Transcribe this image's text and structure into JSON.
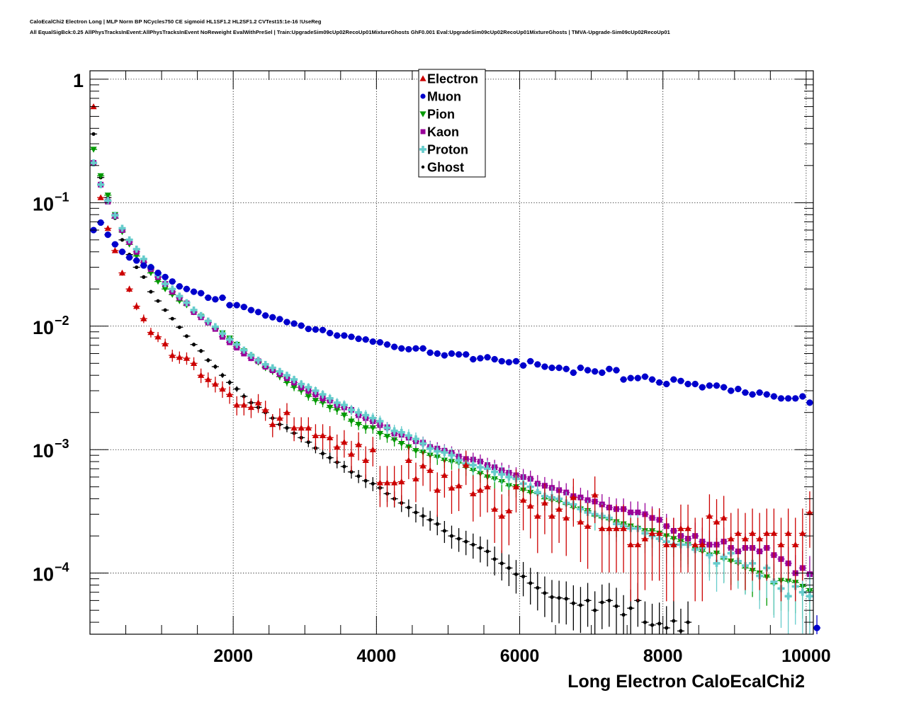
{
  "header": {
    "line1": "CaloEcalChi2 Electron Long | MLP Norm BP NCycles750 CE sigmoid HL1SF1.2 HL2SF1.2 CVTest15:1e-16 !UseReg",
    "line2": "All EqualSigBck:0.25 AllPhysTracksInEvent:AllPhysTracksInEvent NoReweight EvalWithPreSel | Train:UpgradeSim09cUp02RecoUp01MixtureGhosts GhF0.001 Eval:UpgradeSim09cUp02RecoUp01MixtureGhosts | TMVA-Upgrade-Sim09cUp02RecoUp01"
  },
  "chart_data": {
    "type": "scatter",
    "title": "",
    "xlabel": "Long Electron CaloEcalChi2",
    "ylabel": "",
    "xlim": [
      0,
      10100
    ],
    "ylim": [
      3.2e-05,
      1.17
    ],
    "yscale": "log",
    "grid": true,
    "legend_position": "top-center",
    "x_ticks": [
      2000,
      4000,
      6000,
      8000,
      10000
    ],
    "x_tick_labels": [
      "2000",
      "4000",
      "6000",
      "8000",
      "10000"
    ],
    "y_ticks": [
      1,
      0.1,
      0.01,
      0.001,
      0.0001
    ],
    "y_tick_labels": [
      {
        "base": "1",
        "exp": ""
      },
      {
        "base": "10",
        "exp": "−1"
      },
      {
        "base": "10",
        "exp": "−2"
      },
      {
        "base": "10",
        "exp": "−3"
      },
      {
        "base": "10",
        "exp": "−4"
      }
    ],
    "bin_width": 100,
    "bin_start": 0,
    "series": [
      {
        "name": "Electron",
        "color": "#cc0000",
        "marker": "triangle-up",
        "err_scale": 0.0085,
        "values": [
          0.6,
          0.11,
          0.062,
          0.041,
          0.027,
          0.02,
          0.0145,
          0.0115,
          0.0089,
          0.0082,
          0.0072,
          0.0058,
          0.0056,
          0.0055,
          0.005,
          0.004,
          0.0037,
          0.0034,
          0.0031,
          0.0028,
          0.0023,
          0.0023,
          0.0022,
          0.0024,
          0.0021,
          0.0016,
          0.0018,
          0.002,
          0.0015,
          0.0015,
          0.0015,
          0.0013,
          0.0013,
          0.00125,
          0.00105,
          0.00115,
          0.00092,
          0.0011,
          0.00082,
          0.001,
          0.00054,
          0.00054,
          0.00054,
          0.00055,
          0.00082,
          0.00058,
          0.00074,
          0.00068,
          0.00047,
          0.00062,
          0.00049,
          0.00051,
          0.00075,
          0.00044,
          0.00047,
          0.0005,
          0.00033,
          0.00029,
          0.00032,
          0.0005,
          0.00039,
          0.00035,
          0.00029,
          0.00037,
          0.00029,
          0.00033,
          0.00028,
          0.00041,
          0.00026,
          0.00024,
          0.00043,
          0.00023,
          0.00023,
          0.00023,
          0.00023,
          0.00017,
          0.00017,
          0.00019,
          0.00021,
          0.00021,
          0.00017,
          0.00017,
          0.00023,
          0.00023,
          0.00017,
          0.00017,
          0.00029,
          0.00026,
          0.00028,
          0.00019,
          0.00021,
          0.00019,
          0.00021,
          0.00019,
          0.00021,
          0.00021,
          0.00017,
          0.00021,
          0.00017,
          0.00021,
          0.00031
        ]
      },
      {
        "name": "Muon",
        "color": "#0000cc",
        "marker": "circle",
        "err_scale": 0.0016,
        "values": [
          0.06,
          0.069,
          0.055,
          0.046,
          0.04,
          0.036,
          0.034,
          0.031,
          0.03,
          0.027,
          0.025,
          0.023,
          0.021,
          0.02,
          0.019,
          0.0185,
          0.017,
          0.0165,
          0.017,
          0.0148,
          0.0148,
          0.0143,
          0.0135,
          0.013,
          0.0122,
          0.0118,
          0.0114,
          0.0108,
          0.0105,
          0.0101,
          0.0095,
          0.0094,
          0.0093,
          0.0088,
          0.0084,
          0.0084,
          0.0082,
          0.0079,
          0.0078,
          0.0075,
          0.0074,
          0.0071,
          0.0068,
          0.0066,
          0.0065,
          0.0066,
          0.0066,
          0.0061,
          0.006,
          0.0058,
          0.006,
          0.0059,
          0.0059,
          0.0054,
          0.0055,
          0.0056,
          0.0054,
          0.0052,
          0.0051,
          0.0052,
          0.0048,
          0.0052,
          0.0049,
          0.0047,
          0.0046,
          0.0046,
          0.0045,
          0.0042,
          0.0046,
          0.0044,
          0.0043,
          0.0042,
          0.0045,
          0.0044,
          0.0037,
          0.0038,
          0.0038,
          0.0039,
          0.0037,
          0.0035,
          0.0034,
          0.0037,
          0.0036,
          0.0034,
          0.0034,
          0.0032,
          0.0033,
          0.0033,
          0.0032,
          0.003,
          0.0031,
          0.0029,
          0.0028,
          0.0029,
          0.0028,
          0.0027,
          0.0026,
          0.0026,
          0.0026,
          0.0027,
          0.0024,
          3.6e-05
        ]
      },
      {
        "name": "Pion",
        "color": "#009900",
        "marker": "triangle-down",
        "err_scale": 0.004,
        "values": [
          0.27,
          0.165,
          0.115,
          0.08,
          0.058,
          0.046,
          0.037,
          0.031,
          0.027,
          0.023,
          0.02,
          0.018,
          0.016,
          0.0148,
          0.013,
          0.012,
          0.0107,
          0.0096,
          0.0088,
          0.008,
          0.0071,
          0.0063,
          0.0057,
          0.0051,
          0.0046,
          0.0043,
          0.0039,
          0.0035,
          0.0032,
          0.003,
          0.0027,
          0.0025,
          0.0024,
          0.0022,
          0.0021,
          0.0019,
          0.0017,
          0.0016,
          0.0015,
          0.0015,
          0.00135,
          0.00128,
          0.0012,
          0.00112,
          0.00105,
          0.00098,
          0.00095,
          0.0009,
          0.00087,
          0.00082,
          0.0008,
          0.00078,
          0.00072,
          0.00068,
          0.00064,
          0.0006,
          0.00058,
          0.00055,
          0.00051,
          0.0005,
          0.00047,
          0.00045,
          0.00044,
          0.0004,
          0.00039,
          0.00038,
          0.00036,
          0.00034,
          0.00033,
          0.00032,
          0.00029,
          0.00028,
          0.00027,
          0.00026,
          0.00025,
          0.00024,
          0.00023,
          0.00022,
          0.00022,
          0.00021,
          0.0002,
          0.00019,
          0.00018,
          0.00017,
          0.000155,
          0.00015,
          0.00014,
          0.000145,
          0.00013,
          0.000125,
          0.00012,
          0.00011,
          0.000105,
          0.0001,
          9.3e-05,
          8.2e-05,
          8.7e-05,
          8.6e-05,
          8.4e-05,
          7.8e-05,
          7.2e-05
        ]
      },
      {
        "name": "Kaon",
        "color": "#990099",
        "marker": "square",
        "err_scale": 0.004,
        "values": [
          0.21,
          0.14,
          0.102,
          0.078,
          0.06,
          0.048,
          0.04,
          0.033,
          0.029,
          0.025,
          0.022,
          0.019,
          0.017,
          0.0153,
          0.013,
          0.0118,
          0.0107,
          0.0095,
          0.0082,
          0.0074,
          0.0067,
          0.006,
          0.0055,
          0.0052,
          0.0047,
          0.0044,
          0.0041,
          0.0038,
          0.0035,
          0.0032,
          0.003,
          0.0028,
          0.0026,
          0.0025,
          0.0023,
          0.0022,
          0.0021,
          0.0019,
          0.0018,
          0.0017,
          0.00158,
          0.00152,
          0.00135,
          0.00132,
          0.00125,
          0.00117,
          0.00114,
          0.00105,
          0.00102,
          0.00098,
          0.00094,
          0.00088,
          0.00084,
          0.00083,
          0.0008,
          0.00075,
          0.00072,
          0.00068,
          0.00065,
          0.00062,
          0.0006,
          0.00058,
          0.00053,
          0.00051,
          0.00049,
          0.00047,
          0.00045,
          0.00042,
          0.00041,
          0.00039,
          0.00038,
          0.00036,
          0.00034,
          0.00033,
          0.00033,
          0.00031,
          0.00031,
          0.0003,
          0.00028,
          0.00027,
          0.00024,
          0.00022,
          0.0002,
          0.00019,
          0.0002,
          0.00018,
          0.00017,
          0.00017,
          0.00018,
          0.00016,
          0.00015,
          0.00016,
          0.00016,
          0.00015,
          0.00016,
          0.00014,
          0.00013,
          0.00012,
          0.0001,
          0.00011,
          9.8e-05
        ]
      },
      {
        "name": "Proton",
        "color": "#66cccc",
        "marker": "cross",
        "err_scale": 0.0045,
        "values": [
          0.21,
          0.14,
          0.104,
          0.079,
          0.062,
          0.05,
          0.042,
          0.035,
          0.03,
          0.026,
          0.022,
          0.02,
          0.0175,
          0.0155,
          0.0135,
          0.0122,
          0.011,
          0.0099,
          0.0087,
          0.0078,
          0.0071,
          0.0064,
          0.0058,
          0.0053,
          0.0049,
          0.0046,
          0.0043,
          0.004,
          0.0037,
          0.0034,
          0.0032,
          0.003,
          0.0028,
          0.0026,
          0.0024,
          0.0023,
          0.0021,
          0.002,
          0.0019,
          0.0018,
          0.0017,
          0.0015,
          0.00142,
          0.00138,
          0.0013,
          0.00122,
          0.00112,
          0.00102,
          0.00097,
          0.00095,
          0.0009,
          0.00082,
          0.00077,
          0.00075,
          0.00072,
          0.0007,
          0.00066,
          0.00063,
          0.0006,
          0.00058,
          0.00053,
          0.0005,
          0.00045,
          0.00042,
          0.00041,
          0.0004,
          0.00037,
          0.00036,
          0.00033,
          0.00031,
          0.0003,
          0.00029,
          0.00028,
          0.00025,
          0.00024,
          0.00023,
          0.00023,
          0.00021,
          0.0002,
          0.00019,
          0.00018,
          0.00017,
          0.00017,
          0.00017,
          0.000155,
          0.00016,
          0.00014,
          0.00012,
          0.000135,
          0.000145,
          0.000125,
          0.000115,
          0.00012,
          9.5e-05,
          0.00011,
          8.5e-05,
          7.5e-05,
          6.5e-05,
          7.8e-05,
          7e-05,
          6.5e-05
        ]
      },
      {
        "name": "Ghost",
        "color": "#000000",
        "marker": "small-circle",
        "err_scale": 0.003,
        "values": [
          0.36,
          0.16,
          0.11,
          0.075,
          0.05,
          0.038,
          0.03,
          0.025,
          0.019,
          0.016,
          0.0135,
          0.0115,
          0.0098,
          0.0083,
          0.0071,
          0.0063,
          0.0053,
          0.0047,
          0.004,
          0.0035,
          0.0031,
          0.0027,
          0.0024,
          0.0022,
          0.002,
          0.0018,
          0.0016,
          0.0015,
          0.00136,
          0.00125,
          0.00115,
          0.00103,
          0.00093,
          0.00086,
          0.00079,
          0.00073,
          0.00066,
          0.00061,
          0.00056,
          0.00053,
          0.00049,
          0.00044,
          0.0004,
          0.00037,
          0.00034,
          0.00031,
          0.00029,
          0.00027,
          0.00025,
          0.00022,
          0.0002,
          0.00019,
          0.00018,
          0.00017,
          0.00016,
          0.00015,
          0.00013,
          0.00012,
          0.00011,
          9.8e-05,
          9.4e-05,
          8.3e-05,
          7.6e-05,
          6.9e-05,
          6.4e-05,
          6.3e-05,
          6.2e-05,
          5.7e-05,
          5.5e-05,
          6e-05,
          5e-05,
          5.8e-05,
          6e-05,
          5.4e-05,
          4.6e-05,
          5.2e-05,
          6e-05,
          4e-05,
          3.8e-05,
          3.9e-05,
          3.6e-05,
          4.1e-05,
          3.4e-05,
          4e-05,
          null,
          null,
          null,
          null,
          null,
          null,
          null,
          null,
          null,
          null,
          null,
          null,
          null,
          null,
          null,
          null,
          null
        ]
      }
    ]
  }
}
